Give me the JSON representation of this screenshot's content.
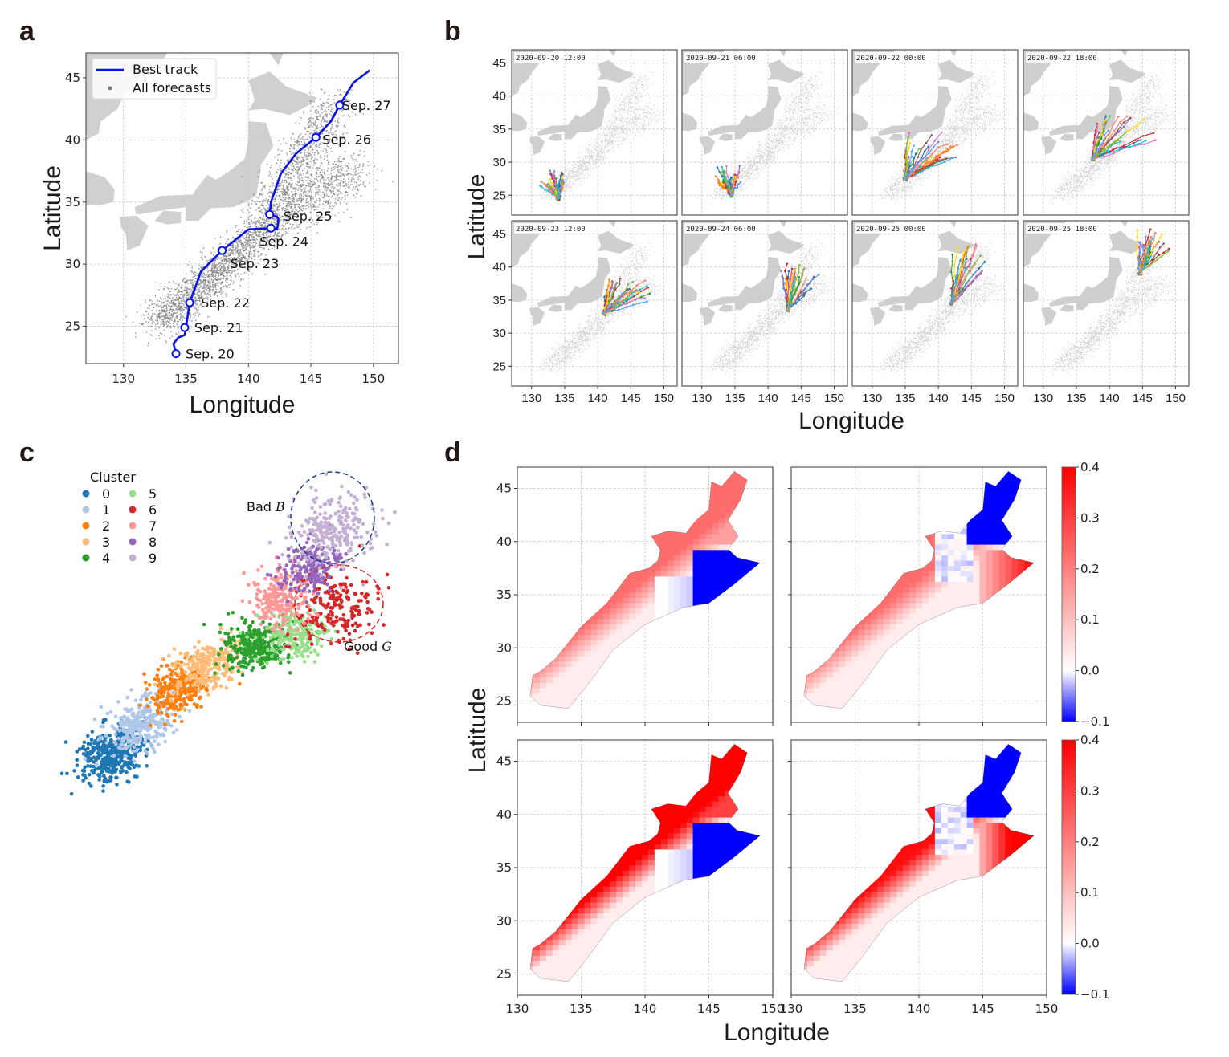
{
  "panels": {
    "a": {
      "letter": "a"
    },
    "b": {
      "letter": "b"
    },
    "c": {
      "letter": "c"
    },
    "d": {
      "letter": "d"
    }
  },
  "chart_data": [
    {
      "id": "a",
      "type": "scatter",
      "title": "",
      "xlabel": "Longitude",
      "ylabel": "Latitude",
      "xlim": [
        127,
        152
      ],
      "ylim": [
        22,
        47
      ],
      "xticks": [
        130,
        135,
        140,
        145,
        150
      ],
      "yticks": [
        25,
        30,
        35,
        40,
        45
      ],
      "grid": true,
      "legend": {
        "placement": "top-left",
        "entries": [
          "Best track",
          "All forecasts"
        ]
      },
      "colors": {
        "best_track": "#0a14e6",
        "forecasts": "#808080",
        "land": "#d0d0d0"
      },
      "best_track": {
        "lon": [
          134.2,
          134.0,
          134.4,
          134.9,
          135.0,
          135.3,
          136.2,
          137.9,
          140.0,
          141.8,
          142.3,
          142.4,
          142.3,
          141.7,
          141.8,
          142.6,
          143.8,
          145.4,
          146.6,
          147.3,
          147.6,
          148.4,
          149.7
        ],
        "lat": [
          22.8,
          23.6,
          24.1,
          24.3,
          24.9,
          26.9,
          29.4,
          31.1,
          32.8,
          32.9,
          32.8,
          33.6,
          33.8,
          34.0,
          35.0,
          37.3,
          38.9,
          40.2,
          41.5,
          42.8,
          43.3,
          44.6,
          45.6
        ]
      },
      "daily_markers": [
        {
          "label": "Sep. 20",
          "lon": 134.2,
          "lat": 22.8
        },
        {
          "label": "Sep. 21",
          "lon": 134.9,
          "lat": 24.9
        },
        {
          "label": "Sep. 22",
          "lon": 135.3,
          "lat": 26.9
        },
        {
          "label": "Sep. 23",
          "lon": 137.9,
          "lat": 31.1
        },
        {
          "label": "Sep. 24",
          "lon": 141.8,
          "lat": 32.9
        },
        {
          "label": "Sep. 25",
          "lon": 141.7,
          "lat": 34.0
        },
        {
          "label": "Sep. 26",
          "lon": 145.4,
          "lat": 40.2
        },
        {
          "label": "Sep. 27",
          "lon": 147.3,
          "lat": 42.8
        }
      ]
    },
    {
      "id": "b",
      "type": "scatter",
      "title": "",
      "xlabel": "Longitude",
      "ylabel": "Latitude",
      "xlim": [
        127,
        152
      ],
      "ylim": [
        22,
        47
      ],
      "xticks": [
        130,
        135,
        140,
        145,
        150
      ],
      "yticks": [
        25,
        30,
        35,
        40,
        45
      ],
      "grid": true,
      "subplots": [
        {
          "timestamp": "2020-09-20 12:00",
          "start": [
            134.0,
            24.5
          ],
          "spread_lon": [
            131,
            135
          ],
          "spread_lat": [
            24.5,
            29.0
          ]
        },
        {
          "timestamp": "2020-09-21 06:00",
          "start": [
            134.5,
            25.0
          ],
          "spread_lon": [
            132,
            136
          ],
          "spread_lat": [
            25.0,
            29.5
          ]
        },
        {
          "timestamp": "2020-09-22 00:00",
          "start": [
            135.0,
            27.5
          ],
          "spread_lon": [
            135,
            143
          ],
          "spread_lat": [
            27.5,
            34.5
          ]
        },
        {
          "timestamp": "2020-09-22 18:00",
          "start": [
            137.5,
            30.5
          ],
          "spread_lon": [
            137,
            147
          ],
          "spread_lat": [
            30.5,
            37.0
          ]
        },
        {
          "timestamp": "2020-09-23 12:00",
          "start": [
            141.0,
            33.0
          ],
          "spread_lon": [
            141,
            148
          ],
          "spread_lat": [
            33.0,
            38.5
          ]
        },
        {
          "timestamp": "2020-09-24 06:00",
          "start": [
            143.0,
            33.5
          ],
          "spread_lon": [
            142,
            148
          ],
          "spread_lat": [
            33.5,
            40.5
          ]
        },
        {
          "timestamp": "2020-09-25 00:00",
          "start": [
            142.0,
            34.5
          ],
          "spread_lon": [
            142,
            147
          ],
          "spread_lat": [
            34.5,
            43.5
          ]
        },
        {
          "timestamp": "2020-09-25 18:00",
          "start": [
            144.5,
            39.0
          ],
          "spread_lon": [
            144,
            149
          ],
          "spread_lat": [
            39.0,
            46.5
          ]
        }
      ],
      "ensemble_colors": [
        "#1f77b4",
        "#ff7f0e",
        "#2ca02c",
        "#d62728",
        "#9467bd",
        "#8c564b",
        "#e377c2",
        "#ffdd00",
        "#17becf",
        "#fa8072",
        "#7fbf3f",
        "#5599ff"
      ]
    },
    {
      "id": "c",
      "type": "scatter",
      "title": "",
      "xlabel": "",
      "ylabel": "",
      "legend": {
        "title": "Cluster",
        "placement": "top-left",
        "entries": [
          "0",
          "1",
          "2",
          "3",
          "4",
          "5",
          "6",
          "7",
          "8",
          "9"
        ]
      },
      "cluster_colors": [
        "#1f77b4",
        "#aec7e8",
        "#ff7f0e",
        "#ffbb78",
        "#2ca02c",
        "#98df8a",
        "#d62728",
        "#ff9896",
        "#9467bd",
        "#c5b0d5"
      ],
      "annotations": [
        {
          "label": "Bad",
          "symbol": "B",
          "ellipse_color": "#1f3a8a",
          "clusters": [
            9
          ]
        },
        {
          "label": "Good",
          "symbol": "G",
          "ellipse_color": "#d62728",
          "clusters": [
            6
          ]
        }
      ]
    },
    {
      "id": "d",
      "type": "heatmap",
      "title": "",
      "xlabel": "Longitude",
      "ylabel": "Latitude",
      "xlim": [
        130,
        150
      ],
      "ylim": [
        23,
        47
      ],
      "xticks": [
        130,
        135,
        140,
        145,
        150
      ],
      "yticks": [
        25,
        30,
        35,
        40,
        45
      ],
      "grid": true,
      "colorbar": {
        "min": -0.1,
        "max": 0.4,
        "ticks": [
          "0.4",
          "0.3",
          "0.2",
          "0.1",
          "0.0",
          "−0.1"
        ],
        "cmap": "bwr",
        "low_color": "#0000ff",
        "mid_color": "#ffffff",
        "high_color": "#ff0000"
      },
      "subplots": [
        {
          "position": "top-left",
          "blue_region": "east of 143E, 33-39N",
          "red_region": "western edge and north tip",
          "red_strength": 0.2
        },
        {
          "position": "top-right",
          "blue_region": "north tip above 39N",
          "red_region": "western edge and east 36-39N",
          "red_strength": 0.2
        },
        {
          "position": "bottom-left",
          "blue_region": "east of 143E, 33-39N",
          "red_region": "western edge and north half",
          "red_strength": 0.4
        },
        {
          "position": "bottom-right",
          "blue_region": "north tip above 39N",
          "red_region": "western edge and east 34-39N",
          "red_strength": 0.35
        }
      ]
    }
  ]
}
